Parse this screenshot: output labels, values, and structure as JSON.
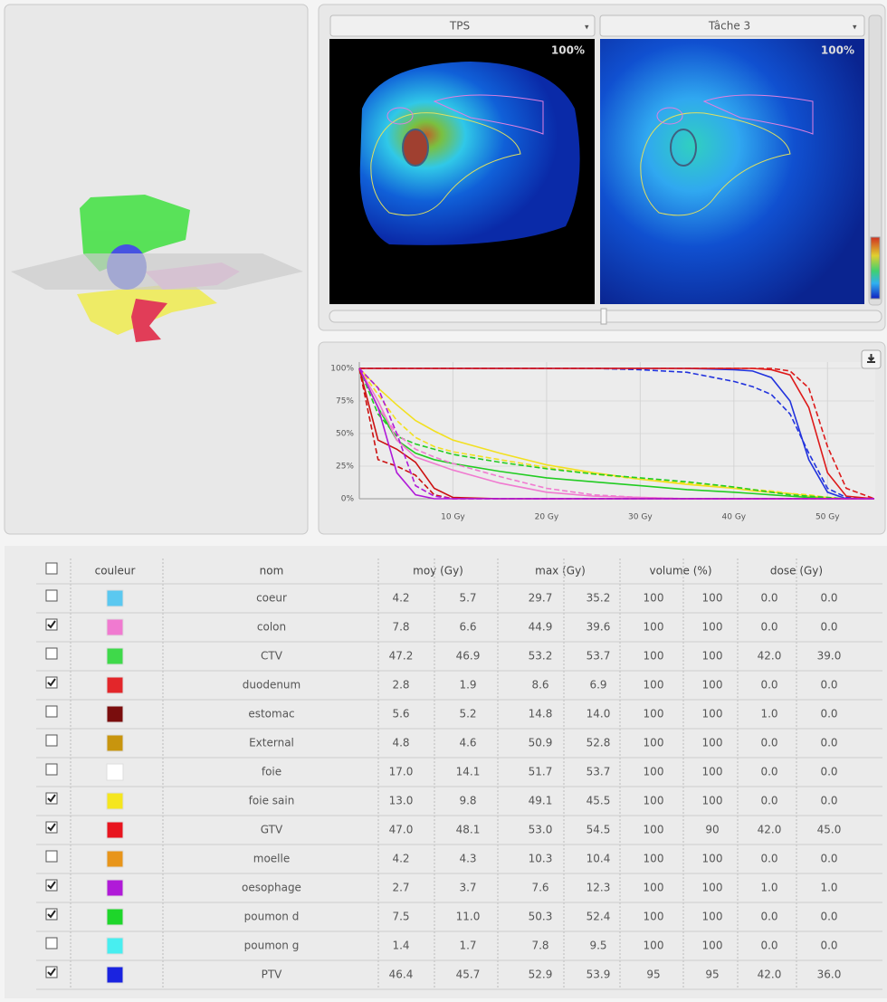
{
  "viewer": {
    "dropdowns": [
      "TPS",
      "Tâche 3"
    ],
    "zoom_labels": [
      "100%",
      "100%"
    ]
  },
  "chart_data": {
    "type": "line",
    "x": [
      0,
      2,
      4,
      6,
      8,
      10,
      15,
      20,
      25,
      30,
      35,
      40,
      42,
      44,
      46,
      48,
      50,
      52,
      55
    ],
    "xlim": [
      0,
      55
    ],
    "ylim": [
      0,
      100
    ],
    "grid": true,
    "xticks": [
      {
        "value": 10,
        "label": "10 Gy"
      },
      {
        "value": 20,
        "label": "20 Gy"
      },
      {
        "value": 30,
        "label": "30 Gy"
      },
      {
        "value": 40,
        "label": "40 Gy"
      },
      {
        "value": 50,
        "label": "50 Gy"
      }
    ],
    "yticks": [
      {
        "value": 0,
        "label": "0%"
      },
      {
        "value": 25,
        "label": "25%"
      },
      {
        "value": 50,
        "label": "50%"
      },
      {
        "value": 75,
        "label": "75%"
      },
      {
        "value": 100,
        "label": "100%"
      }
    ],
    "series": [
      {
        "color": "#2233dd",
        "dash": false,
        "values": [
          100,
          100,
          100,
          100,
          100,
          100,
          100,
          100,
          100,
          100,
          100,
          99,
          98,
          93,
          75,
          30,
          5,
          0,
          0
        ]
      },
      {
        "color": "#2233dd",
        "dash": true,
        "values": [
          100,
          100,
          100,
          100,
          100,
          100,
          100,
          100,
          100,
          99,
          97,
          90,
          86,
          80,
          65,
          35,
          8,
          1,
          0
        ]
      },
      {
        "color": "#dd1a1a",
        "dash": false,
        "values": [
          100,
          100,
          100,
          100,
          100,
          100,
          100,
          100,
          100,
          100,
          100,
          100,
          100,
          99,
          95,
          70,
          20,
          2,
          0
        ]
      },
      {
        "color": "#dd1a1a",
        "dash": true,
        "values": [
          100,
          100,
          100,
          100,
          100,
          100,
          100,
          100,
          100,
          100,
          100,
          100,
          100,
          100,
          98,
          85,
          40,
          8,
          0
        ]
      },
      {
        "color": "#f2e020",
        "dash": false,
        "values": [
          100,
          85,
          72,
          60,
          52,
          45,
          35,
          26,
          20,
          15,
          11,
          8,
          6,
          5,
          4,
          2,
          1,
          0,
          0
        ]
      },
      {
        "color": "#f2e020",
        "dash": true,
        "values": [
          100,
          80,
          60,
          47,
          40,
          36,
          30,
          24,
          19,
          15,
          12,
          9,
          7,
          6,
          4,
          3,
          1,
          0,
          0
        ]
      },
      {
        "color": "#22cc22",
        "dash": false,
        "values": [
          100,
          70,
          45,
          35,
          30,
          27,
          21,
          16,
          13,
          10,
          7,
          5,
          4,
          3,
          2,
          1,
          0,
          0,
          0
        ]
      },
      {
        "color": "#22cc22",
        "dash": true,
        "values": [
          100,
          65,
          48,
          42,
          38,
          34,
          28,
          23,
          19,
          16,
          13,
          9,
          7,
          5,
          3,
          2,
          1,
          0,
          0
        ]
      },
      {
        "color": "#f07ad0",
        "dash": false,
        "values": [
          100,
          75,
          45,
          32,
          27,
          22,
          12,
          5,
          2,
          1,
          0,
          0,
          0,
          0,
          0,
          0,
          0,
          0,
          0
        ]
      },
      {
        "color": "#f07ad0",
        "dash": true,
        "values": [
          100,
          70,
          50,
          38,
          32,
          27,
          17,
          8,
          3,
          1,
          0,
          0,
          0,
          0,
          0,
          0,
          0,
          0,
          0
        ]
      },
      {
        "color": "#cc1111",
        "dash": false,
        "values": [
          100,
          45,
          38,
          28,
          8,
          1,
          0,
          0,
          0,
          0,
          0,
          0,
          0,
          0,
          0,
          0,
          0,
          0,
          0
        ]
      },
      {
        "color": "#cc1111",
        "dash": true,
        "values": [
          100,
          30,
          25,
          18,
          3,
          0,
          0,
          0,
          0,
          0,
          0,
          0,
          0,
          0,
          0,
          0,
          0,
          0,
          0
        ]
      },
      {
        "color": "#b01ad8",
        "dash": false,
        "values": [
          100,
          70,
          20,
          3,
          0,
          0,
          0,
          0,
          0,
          0,
          0,
          0,
          0,
          0,
          0,
          0,
          0,
          0,
          0
        ]
      },
      {
        "color": "#b01ad8",
        "dash": true,
        "values": [
          100,
          85,
          50,
          10,
          2,
          0,
          0,
          0,
          0,
          0,
          0,
          0,
          0,
          0,
          0,
          0,
          0,
          0,
          0
        ]
      }
    ]
  },
  "table": {
    "header": {
      "checked": false,
      "columns": [
        "couleur",
        "nom",
        "moy (Gy)",
        "max (Gy)",
        "volume (%)",
        "dose (Gy)"
      ]
    },
    "rows": [
      {
        "checked": false,
        "color": "#5bc8f0",
        "name": "coeur",
        "values": [
          "4.2",
          "5.7",
          "29.7",
          "35.2",
          "100",
          "100",
          "0.0",
          "0.0"
        ]
      },
      {
        "checked": true,
        "color": "#f07ad0",
        "name": "colon",
        "values": [
          "7.8",
          "6.6",
          "44.9",
          "39.6",
          "100",
          "100",
          "0.0",
          "0.0"
        ]
      },
      {
        "checked": false,
        "color": "#3fd94a",
        "name": "CTV",
        "values": [
          "47.2",
          "46.9",
          "53.2",
          "53.7",
          "100",
          "100",
          "42.0",
          "39.0"
        ]
      },
      {
        "checked": true,
        "color": "#e3262a",
        "name": "duodenum",
        "values": [
          "2.8",
          "1.9",
          "8.6",
          "6.9",
          "100",
          "100",
          "0.0",
          "0.0"
        ]
      },
      {
        "checked": false,
        "color": "#7a0d0d",
        "name": "estomac",
        "values": [
          "5.6",
          "5.2",
          "14.8",
          "14.0",
          "100",
          "100",
          "1.0",
          "0.0"
        ]
      },
      {
        "checked": false,
        "color": "#c8950e",
        "name": "External",
        "values": [
          "4.8",
          "4.6",
          "50.9",
          "52.8",
          "100",
          "100",
          "0.0",
          "0.0"
        ]
      },
      {
        "checked": false,
        "color": "#ffffff",
        "name": "foie",
        "values": [
          "17.0",
          "14.1",
          "51.7",
          "53.7",
          "100",
          "100",
          "0.0",
          "0.0"
        ]
      },
      {
        "checked": true,
        "color": "#f5e61e",
        "name": "foie sain",
        "values": [
          "13.0",
          "9.8",
          "49.1",
          "45.5",
          "100",
          "100",
          "0.0",
          "0.0"
        ]
      },
      {
        "checked": true,
        "color": "#e8141e",
        "name": "GTV",
        "values": [
          "47.0",
          "48.1",
          "53.0",
          "54.5",
          "100",
          "90",
          "42.0",
          "45.0"
        ]
      },
      {
        "checked": false,
        "color": "#e8951a",
        "name": "moelle",
        "values": [
          "4.2",
          "4.3",
          "10.3",
          "10.4",
          "100",
          "100",
          "0.0",
          "0.0"
        ]
      },
      {
        "checked": true,
        "color": "#b01ad8",
        "name": "oesophage",
        "values": [
          "2.7",
          "3.7",
          "7.6",
          "12.3",
          "100",
          "100",
          "1.0",
          "1.0"
        ]
      },
      {
        "checked": true,
        "color": "#1ed62a",
        "name": "poumon d",
        "values": [
          "7.5",
          "11.0",
          "50.3",
          "52.4",
          "100",
          "100",
          "0.0",
          "0.0"
        ]
      },
      {
        "checked": false,
        "color": "#48eef0",
        "name": "poumon g",
        "values": [
          "1.4",
          "1.7",
          "7.8",
          "9.5",
          "100",
          "100",
          "0.0",
          "0.0"
        ]
      },
      {
        "checked": true,
        "color": "#1a23e0",
        "name": "PTV",
        "values": [
          "46.4",
          "45.7",
          "52.9",
          "53.9",
          "95",
          "95",
          "42.0",
          "36.0"
        ]
      }
    ]
  }
}
